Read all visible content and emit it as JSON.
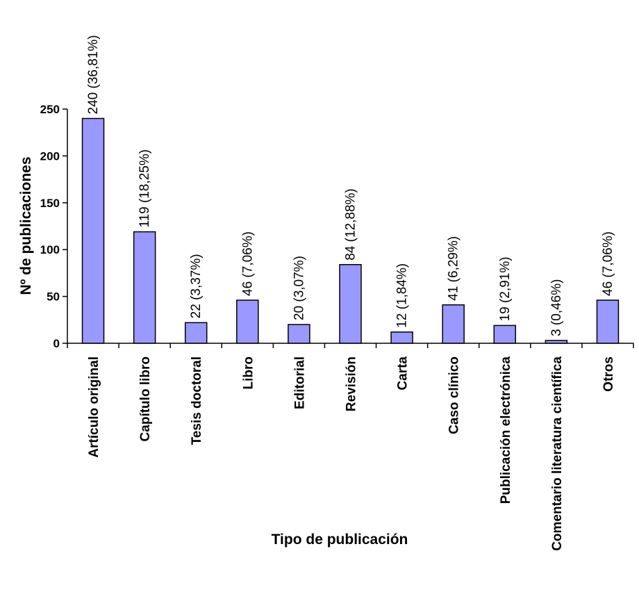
{
  "chart_data": {
    "type": "bar",
    "title": "",
    "xlabel": "Tipo de publicación",
    "ylabel": "Nº de publicaciones",
    "categories": [
      "Artículo original",
      "Capítulo libro",
      "Tesis doctoral",
      "Libro",
      "Editorial",
      "Revisión",
      "Carta",
      "Caso clínico",
      "Publicación electrónica",
      "Comentario literatura científica",
      "Otros"
    ],
    "values": [
      240,
      119,
      22,
      46,
      20,
      84,
      12,
      41,
      19,
      3,
      46
    ],
    "data_labels": [
      "240  (36,81%)",
      "119  (18,25%)",
      "22  (3,37%)",
      "46  (7,06%)",
      "20  (3,07%)",
      "84  (12,88%)",
      "12  (1,84%)",
      "41  (6,29%)",
      "19  (2,91%)",
      "3  (0,46%)",
      "46  (7,06%)"
    ],
    "ylim": [
      0,
      250
    ],
    "yticks": [
      0,
      50,
      100,
      150,
      200,
      250
    ],
    "grid": false,
    "legend": "none",
    "bar_color": "#9999ff",
    "bar_edge_color": "#000000"
  }
}
